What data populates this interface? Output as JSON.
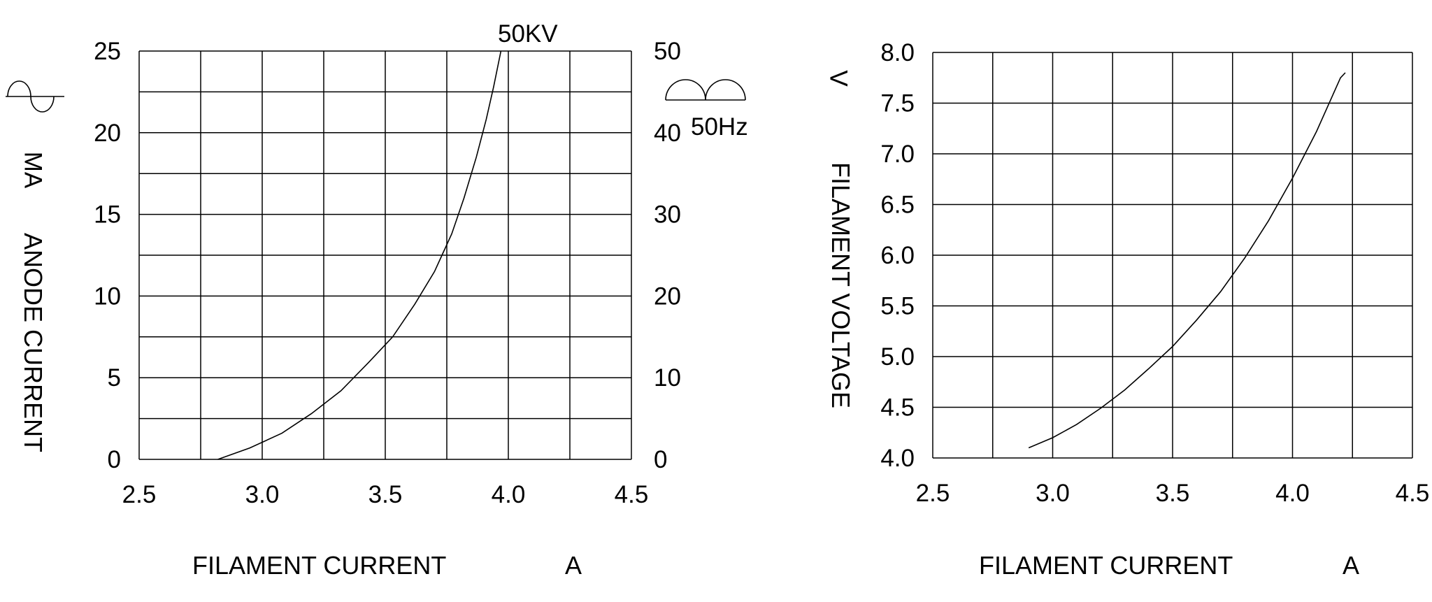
{
  "colors": {
    "background": "#ffffff",
    "ink": "#000000"
  },
  "chart_data": [
    {
      "type": "line",
      "id": "anode-current-vs-filament-current",
      "curve_label": "50KV",
      "x_axis": {
        "label": "FILAMENT CURRENT",
        "unit": "A",
        "min": 2.5,
        "max": 4.5,
        "grid_step": 0.25,
        "tick_values": [
          2.5,
          3.0,
          3.5,
          4.0,
          4.5
        ],
        "tick_labels": [
          "2.5",
          "3.0",
          "3.5",
          "4.0",
          "4.5"
        ]
      },
      "y_axis_left": {
        "label": "ANODE CURRENT",
        "unit": "MA",
        "min": 0,
        "max": 25,
        "grid_step": 2.5,
        "tick_values": [
          25,
          20,
          15,
          10,
          5,
          0
        ],
        "tick_labels": [
          "25",
          "20",
          "15",
          "10",
          "5",
          "0"
        ]
      },
      "y_axis_right": {
        "min": 0,
        "max": 50,
        "tick_values": [
          50,
          40,
          30,
          20,
          10,
          0
        ],
        "tick_labels": [
          "50",
          "40",
          "30",
          "20",
          "10",
          "0"
        ],
        "annotation": "50Hz",
        "icon": "full-wave-rectified-icon"
      },
      "waveform_icon": "sine-wave-icon",
      "grid": true,
      "legend": "none",
      "series": [
        {
          "name": "50KV",
          "points": [
            [
              2.82,
              0
            ],
            [
              2.95,
              0.7
            ],
            [
              3.08,
              1.6
            ],
            [
              3.2,
              2.8
            ],
            [
              3.32,
              4.2
            ],
            [
              3.43,
              5.9
            ],
            [
              3.53,
              7.5
            ],
            [
              3.62,
              9.5
            ],
            [
              3.7,
              11.5
            ],
            [
              3.77,
              13.8
            ],
            [
              3.82,
              16.0
            ],
            [
              3.87,
              18.5
            ],
            [
              3.91,
              20.8
            ],
            [
              3.94,
              22.8
            ],
            [
              3.97,
              25.0
            ]
          ]
        }
      ]
    },
    {
      "type": "line",
      "id": "filament-voltage-vs-filament-current",
      "curve_label": "",
      "x_axis": {
        "label": "FILAMENT CURRENT",
        "unit": "A",
        "min": 2.5,
        "max": 4.5,
        "grid_step": 0.25,
        "tick_values": [
          2.5,
          3.0,
          3.5,
          4.0,
          4.5
        ],
        "tick_labels": [
          "2.5",
          "3.0",
          "3.5",
          "4.0",
          "4.5"
        ]
      },
      "y_axis_left": {
        "label": "FILAMENT VOLTAGE",
        "unit": "V",
        "min": 4.0,
        "max": 8.0,
        "grid_step": 0.5,
        "tick_values": [
          8.0,
          7.5,
          7.0,
          6.5,
          6.0,
          5.5,
          5.0,
          4.5,
          4.0
        ],
        "tick_labels": [
          "8.0",
          "7.5",
          "7.0",
          "6.5",
          "6.0",
          "5.5",
          "5.0",
          "4.5",
          "4.0"
        ]
      },
      "grid": true,
      "legend": "none",
      "series": [
        {
          "name": "filament-voltage",
          "points": [
            [
              2.9,
              4.1
            ],
            [
              3.0,
              4.2
            ],
            [
              3.1,
              4.33
            ],
            [
              3.2,
              4.49
            ],
            [
              3.3,
              4.67
            ],
            [
              3.4,
              4.88
            ],
            [
              3.5,
              5.1
            ],
            [
              3.6,
              5.36
            ],
            [
              3.7,
              5.64
            ],
            [
              3.8,
              5.97
            ],
            [
              3.9,
              6.34
            ],
            [
              4.0,
              6.76
            ],
            [
              4.1,
              7.22
            ],
            [
              4.2,
              7.75
            ],
            [
              4.22,
              7.8
            ]
          ]
        }
      ]
    }
  ]
}
